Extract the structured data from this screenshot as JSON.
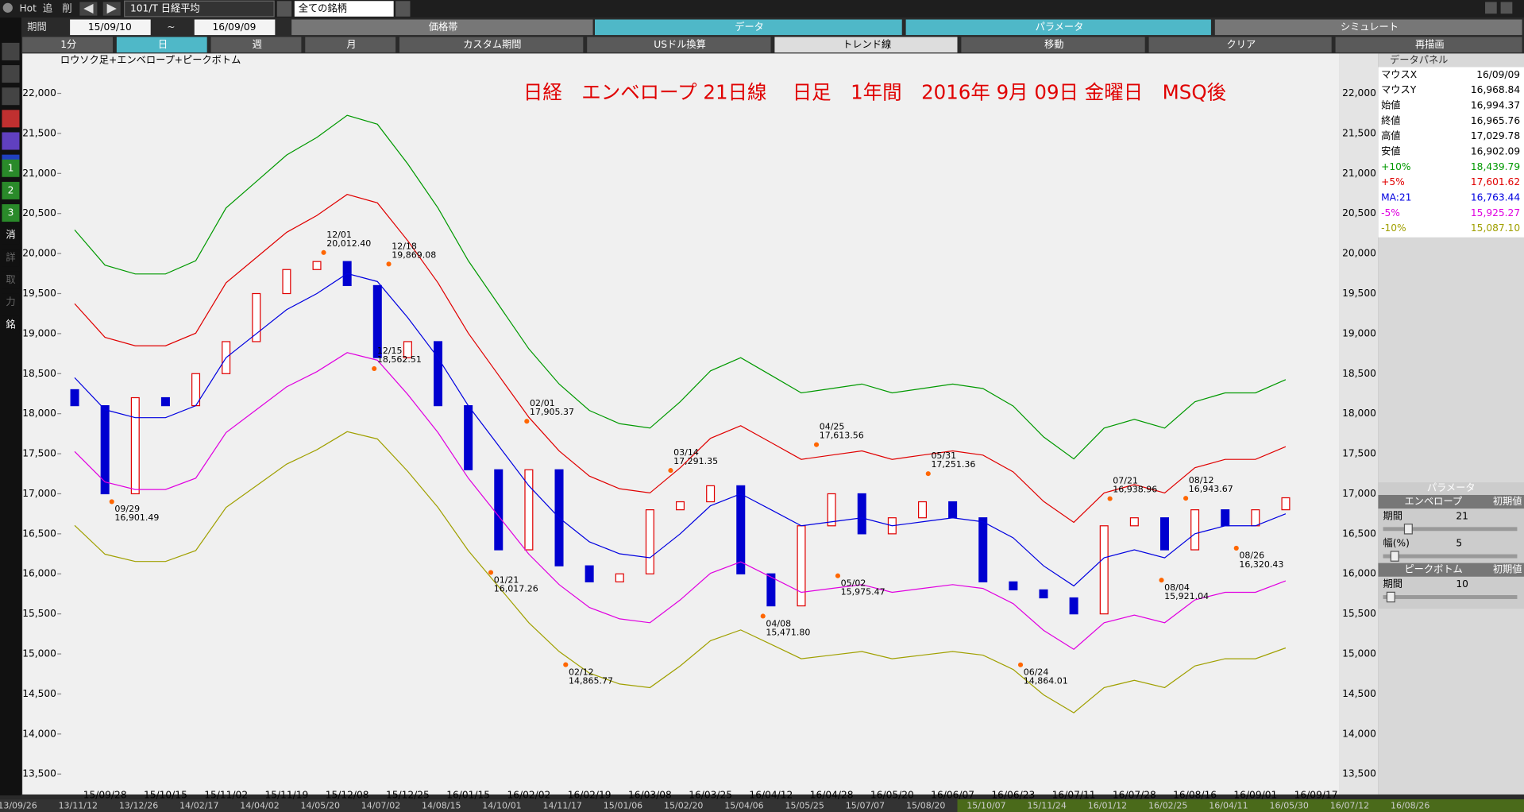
{
  "toolbar": {
    "hot": "Hot",
    "add": "追",
    "del": "削",
    "symbol": "101/T 日経平均",
    "universe": "全ての銘柄"
  },
  "period": {
    "label": "期間",
    "from": "15/09/10",
    "sep": "~",
    "to": "16/09/09"
  },
  "tabs": [
    "価格帯",
    "データ",
    "パラメータ",
    "シミュレート"
  ],
  "buttons": [
    "1分",
    "日",
    "週",
    "月",
    "カスタム期間",
    "USドル換算",
    "トレンド線",
    "移動",
    "クリア",
    "再描画"
  ],
  "side_tools": [
    "1",
    "2",
    "3",
    "消",
    "詳",
    "取",
    "力",
    "銘"
  ],
  "chart_data": {
    "type": "line",
    "caption": "ロウソク足+エンベロープ+ピークボトム",
    "title": "日経　エンベロープ 21日線　 日足　1年間　2016年 9月 09日 金曜日　MSQ後",
    "categories": [
      null,
      null,
      "15/09/28",
      null,
      "15/10/15",
      null,
      "15/11/02",
      null,
      "15/11/19",
      null,
      "15/12/08",
      null,
      "15/12/25",
      null,
      "16/01/15",
      null,
      "16/02/02",
      null,
      "16/02/19",
      null,
      "16/03/08",
      null,
      "16/03/25",
      null,
      "16/04/12",
      null,
      "16/04/28",
      null,
      "16/05/20",
      null,
      "16/06/07",
      null,
      "16/06/23",
      null,
      "16/07/11",
      null,
      "16/07/28",
      null,
      "16/08/16",
      null,
      "16/09/01",
      null,
      "16/09/17"
    ],
    "series": [
      {
        "name": "+10%",
        "color": "#009900",
        "values": [
          null,
          20295,
          19855,
          19745,
          19745,
          19910,
          20570,
          20900,
          21230,
          21450,
          21725,
          21615,
          21120,
          20570,
          19910,
          19360,
          18810,
          18370,
          18040,
          17875,
          17820,
          18150,
          18535,
          18700,
          18480,
          18260,
          18315,
          18370,
          18260,
          18315,
          18370,
          18315,
          18095,
          17710,
          17435,
          17820,
          17930,
          17820,
          18150,
          18260,
          18260,
          18425,
          null
        ]
      },
      {
        "name": "+5%",
        "color": "#e00000",
        "values": [
          null,
          19373,
          18953,
          18848,
          18848,
          19005,
          19635,
          19950,
          20265,
          20475,
          20738,
          20633,
          20160,
          19635,
          19005,
          18480,
          17955,
          17535,
          17220,
          17063,
          17010,
          17325,
          17693,
          17850,
          17640,
          17430,
          17483,
          17535,
          17430,
          17483,
          17535,
          17483,
          17273,
          16905,
          16643,
          17010,
          17115,
          17010,
          17325,
          17430,
          17430,
          17588,
          null
        ]
      },
      {
        "name": "MA:21",
        "color": "#0000e0",
        "values": [
          null,
          18450,
          18050,
          17950,
          17950,
          18100,
          18700,
          19000,
          19300,
          19500,
          19750,
          19650,
          19200,
          18700,
          18100,
          17600,
          17100,
          16700,
          16400,
          16250,
          16200,
          16500,
          16850,
          17000,
          16800,
          16600,
          16650,
          16700,
          16600,
          16650,
          16700,
          16650,
          16450,
          16100,
          15850,
          16200,
          16300,
          16200,
          16500,
          16600,
          16600,
          16750,
          null
        ]
      },
      {
        "name": "-5%",
        "color": "#e000e0",
        "values": [
          null,
          17528,
          17148,
          17053,
          17053,
          17195,
          17765,
          18050,
          18335,
          18525,
          18763,
          18668,
          18240,
          17765,
          17195,
          16720,
          16245,
          15865,
          15580,
          15438,
          15390,
          15675,
          16008,
          16150,
          15960,
          15770,
          15818,
          15865,
          15770,
          15818,
          15865,
          15818,
          15628,
          15295,
          15058,
          15390,
          15485,
          15390,
          15675,
          15770,
          15770,
          15913,
          null
        ]
      },
      {
        "name": "-10%",
        "color": "#a0a000",
        "values": [
          null,
          16605,
          16245,
          16155,
          16155,
          16290,
          16830,
          17100,
          17370,
          17550,
          17775,
          17685,
          17280,
          16830,
          16290,
          15840,
          15390,
          15030,
          14760,
          14625,
          14580,
          14850,
          15165,
          15300,
          15120,
          14940,
          14985,
          15030,
          14940,
          14985,
          15030,
          14985,
          14805,
          14490,
          14265,
          14580,
          14670,
          14580,
          14850,
          14940,
          14940,
          15075,
          null
        ]
      }
    ],
    "candles": {
      "up_color": "#e00000",
      "down_color": "#0000d0",
      "open": [
        null,
        18300,
        18100,
        17000,
        18200,
        18100,
        18500,
        18900,
        19500,
        19800,
        19900,
        19600,
        18700,
        18900,
        18100,
        17300,
        16300,
        17300,
        16100,
        15900,
        16000,
        16800,
        16900,
        17100,
        16000,
        15600,
        16600,
        17000,
        16500,
        16700,
        16900,
        16700,
        15900,
        15800,
        15700,
        15500,
        16600,
        16700,
        16300,
        16800,
        16600,
        16800,
        null
      ],
      "close": [
        null,
        18100,
        17000,
        18200,
        18100,
        18500,
        18900,
        19500,
        19800,
        19900,
        19600,
        18700,
        18900,
        18100,
        17300,
        16300,
        17300,
        16100,
        15900,
        16000,
        16800,
        16900,
        17100,
        16000,
        15600,
        16600,
        17000,
        16500,
        16700,
        16900,
        16700,
        15900,
        15800,
        15700,
        15500,
        16600,
        16700,
        16300,
        16800,
        16600,
        16800,
        16950,
        null
      ]
    },
    "peak_bottom": {
      "color": "#ff6600",
      "dates": [
        "12/01",
        "12/18",
        "12/15",
        "02/01",
        "03/14",
        "04/25",
        "05/31",
        "07/21",
        "08/12",
        "09/29",
        "01/21",
        "02/12",
        "04/08",
        "05/02",
        "06/24",
        "08/04",
        "08/26"
      ],
      "values": [
        20012.4,
        19869.08,
        18562.51,
        17905.37,
        17291.35,
        17613.56,
        17251.36,
        16938.96,
        16943.67,
        16901.49,
        16017.26,
        14865.77,
        15471.8,
        15975.47,
        14864.01,
        15921.04,
        16320.43
      ],
      "value_labels": [
        "20,012.40",
        "19,869.08",
        "18,562.51",
        "17,905.37",
        "17,291.35",
        "17,613.56",
        "17,251.36",
        "16,938.96",
        "16,943.67",
        "16,901.49",
        "16,017.26",
        "14,865.77",
        "15,471.80",
        "15,975.47",
        "14,864.01",
        "15,921.04",
        "16,320.43"
      ]
    },
    "ylim": [
      13500,
      22000
    ],
    "yticks": [
      {
        "value": 13500,
        "label": "13,500"
      },
      {
        "value": 14000,
        "label": "14,000"
      },
      {
        "value": 14500,
        "label": "14,500"
      },
      {
        "value": 15000,
        "label": "15,000"
      },
      {
        "value": 15500,
        "label": "15,500"
      },
      {
        "value": 16000,
        "label": "16,000"
      },
      {
        "value": 16500,
        "label": "16,500"
      },
      {
        "value": 17000,
        "label": "17,000"
      },
      {
        "value": 17500,
        "label": "17,500"
      },
      {
        "value": 18000,
        "label": "18,000"
      },
      {
        "value": 18500,
        "label": "18,500"
      },
      {
        "value": 19000,
        "label": "19,000"
      },
      {
        "value": 19500,
        "label": "19,500"
      },
      {
        "value": 20000,
        "label": "20,000"
      },
      {
        "value": 20500,
        "label": "20,500"
      },
      {
        "value": 21000,
        "label": "21,000"
      },
      {
        "value": 21500,
        "label": "21,500"
      },
      {
        "value": 22000,
        "label": "22,000"
      }
    ],
    "grid": false
  },
  "data_panel": {
    "title": "データパネル",
    "rows": [
      [
        "マウスX",
        "16/09/09"
      ],
      [
        "マウスY",
        "16,968.84"
      ],
      [
        "始値",
        "16,994.37"
      ],
      [
        "終値",
        "16,965.76"
      ],
      [
        "高値",
        "17,029.78"
      ],
      [
        "安値",
        "16,902.09"
      ],
      [
        "+10%",
        "18,439.79"
      ],
      [
        "+5%",
        "17,601.62"
      ],
      [
        "MA:21",
        "16,763.44"
      ],
      [
        "-5%",
        "15,925.27"
      ],
      [
        "-10%",
        "15,087.10"
      ]
    ]
  },
  "param_panel": {
    "title": "パラメータ",
    "envelope": "エンベロープ",
    "reset1": "初期値",
    "period_label": "期間",
    "period": "21",
    "width_label": "幅(%)",
    "width": "5",
    "peak_bottom": "ピークボトム",
    "reset2": "初期値",
    "pb_period_label": "期間",
    "pb_period": "10"
  },
  "scroll_dates": [
    "13/09/26",
    "13/11/12",
    "13/12/26",
    "14/02/17",
    "14/04/02",
    "14/05/20",
    "14/07/02",
    "14/08/15",
    "14/10/01",
    "14/11/17",
    "15/01/06",
    "15/02/20",
    "15/04/06",
    "15/05/25",
    "15/07/07",
    "15/08/20",
    "15/10/07",
    "15/11/24",
    "16/01/12",
    "16/02/25",
    "16/04/11",
    "16/05/30",
    "16/07/12",
    "16/08/26"
  ]
}
